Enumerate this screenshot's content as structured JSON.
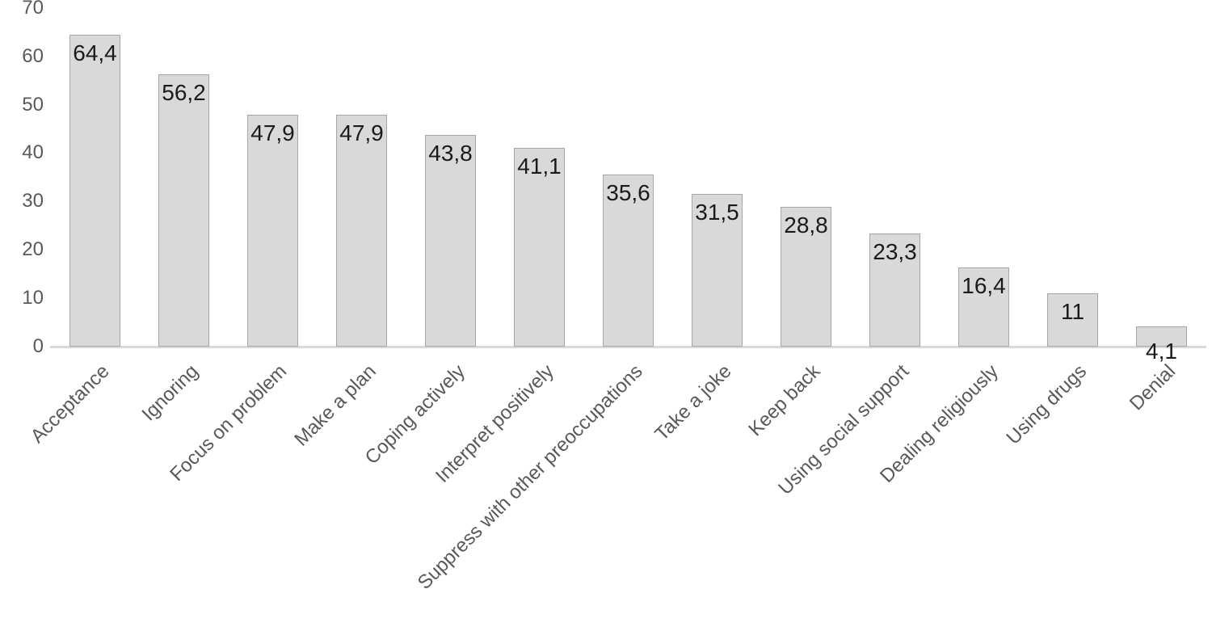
{
  "chart_data": {
    "type": "bar",
    "title": "",
    "categories": [
      "Acceptance",
      "Ignoring",
      "Focus on problem",
      "Make a plan",
      "Coping actively",
      "Interpret positively",
      "Suppress with other preoccupations",
      "Take a joke",
      "Keep back",
      "Using social support",
      "Dealing religiously",
      "Using drugs",
      "Denial"
    ],
    "values": [
      64.4,
      56.2,
      47.9,
      47.9,
      43.8,
      41.1,
      35.6,
      31.5,
      28.8,
      23.3,
      16.4,
      11,
      4.1
    ],
    "value_labels": [
      "64,4",
      "56,2",
      "47,9",
      "47,9",
      "43,8",
      "41,1",
      "35,6",
      "31,5",
      "28,8",
      "23,3",
      "16,4",
      "11",
      "4,1"
    ],
    "xlabel": "",
    "ylabel": "",
    "ylim": [
      0,
      70
    ],
    "ytick_step": 10,
    "ytick_labels": [
      "0",
      "10",
      "20",
      "30",
      "40",
      "50",
      "60",
      "70"
    ],
    "grid": false,
    "legend": false,
    "colors": {
      "bar_fill": "#d9d9d9",
      "bar_border": "#a6a6a6",
      "axis_line": "#d9d9d9",
      "tick_text": "#595959",
      "category_text": "#595959",
      "value_label_text": "#1a1a1a",
      "background": "#ffffff"
    }
  }
}
